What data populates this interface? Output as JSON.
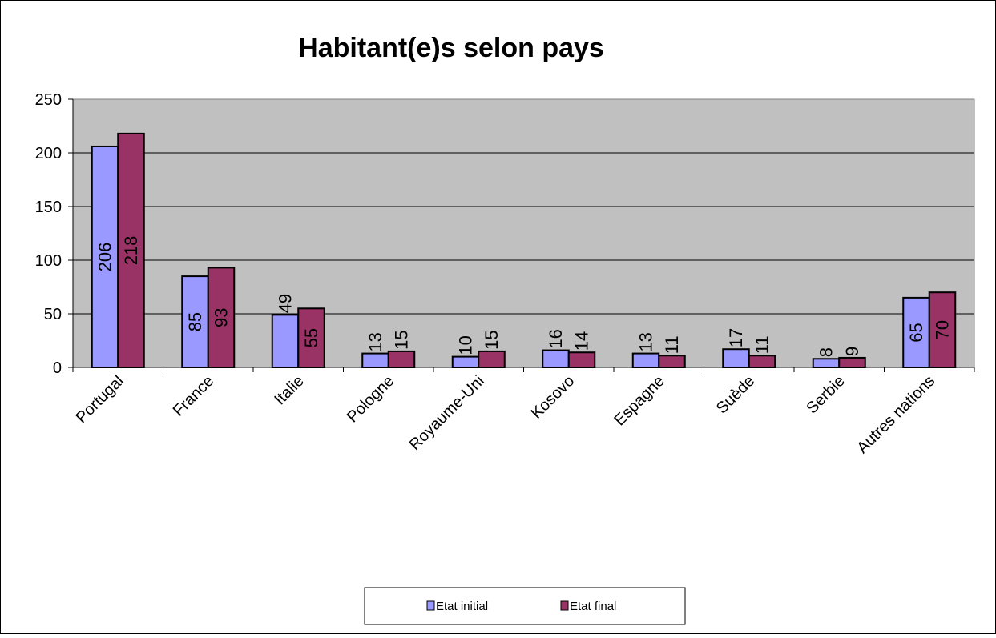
{
  "chart_data": {
    "type": "bar",
    "title": "Habitant(e)s selon pays",
    "xlabel": "",
    "ylabel": "",
    "categories": [
      "Portugal",
      "France",
      "Italie",
      "Pologne",
      "Royaume-Uni",
      "Kosovo",
      "Espagne",
      "Suède",
      "Serbie",
      "Autres nations"
    ],
    "series": [
      {
        "name": "Etat initial",
        "values": [
          206,
          85,
          49,
          13,
          10,
          16,
          13,
          17,
          8,
          65
        ],
        "color": "#9999ff"
      },
      {
        "name": "Etat final",
        "values": [
          218,
          93,
          55,
          15,
          15,
          14,
          11,
          11,
          9,
          70
        ],
        "color": "#993366"
      }
    ],
    "ylim": [
      0,
      250
    ],
    "yticks": [
      "0",
      "50",
      "100",
      "150",
      "200",
      "250"
    ],
    "grid": true,
    "plot_background": "#c0c0c0",
    "legend_position": "bottom"
  }
}
